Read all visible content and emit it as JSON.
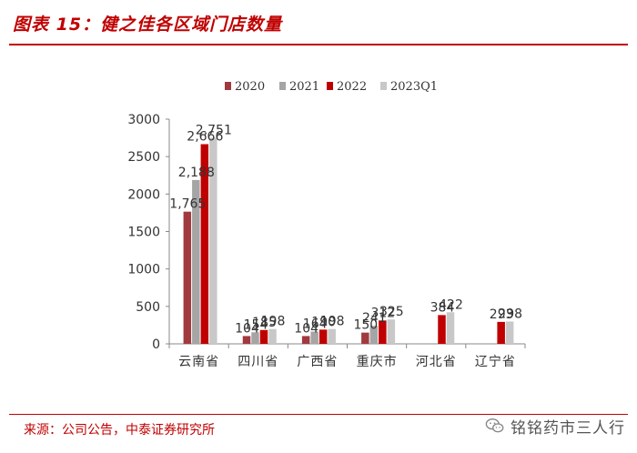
{
  "header": {
    "title": "图表 15：健之佳各区域门店数量"
  },
  "footer": {
    "source": "来源：公司公告，中泰证券研究所",
    "watermark": "铭铭药市三人行",
    "watermark_icon": "wechat-icon"
  },
  "colors": {
    "accent": "#c00000"
  },
  "chart_data": {
    "type": "bar",
    "title": "健之佳各区域门店数量",
    "xlabel": "",
    "ylabel": "",
    "ylim": [
      0,
      3000
    ],
    "yticks": [
      "0",
      "500",
      "1000",
      "1500",
      "2000",
      "2500",
      "3000"
    ],
    "categories": [
      "云南省",
      "四川省",
      "广西省",
      "重庆市",
      "河北省",
      "辽宁省"
    ],
    "series": [
      {
        "name": "2020",
        "color": "#a13a3f",
        "values": [
          1765,
          104,
          104,
          150,
          null,
          null
        ],
        "labels": [
          "1,765",
          "104",
          "104",
          "150",
          "",
          ""
        ]
      },
      {
        "name": "2021",
        "color": "#a5a5a5",
        "values": [
          2188,
          154,
          164,
          241,
          null,
          null
        ],
        "labels": [
          "2,188",
          "154",
          "164",
          "241",
          "",
          ""
        ]
      },
      {
        "name": "2022",
        "color": "#c00000",
        "values": [
          2666,
          185,
          190,
          312,
          384,
          293
        ],
        "labels": [
          "2,666",
          "185",
          "190",
          "312",
          "384",
          "293"
        ]
      },
      {
        "name": "2023Q1",
        "color": "#c8c8c8",
        "values": [
          2751,
          198,
          198,
          325,
          422,
          298
        ],
        "labels": [
          "2,751",
          "198",
          "198",
          "325",
          "422",
          "298"
        ]
      }
    ],
    "legend_position": "top"
  }
}
